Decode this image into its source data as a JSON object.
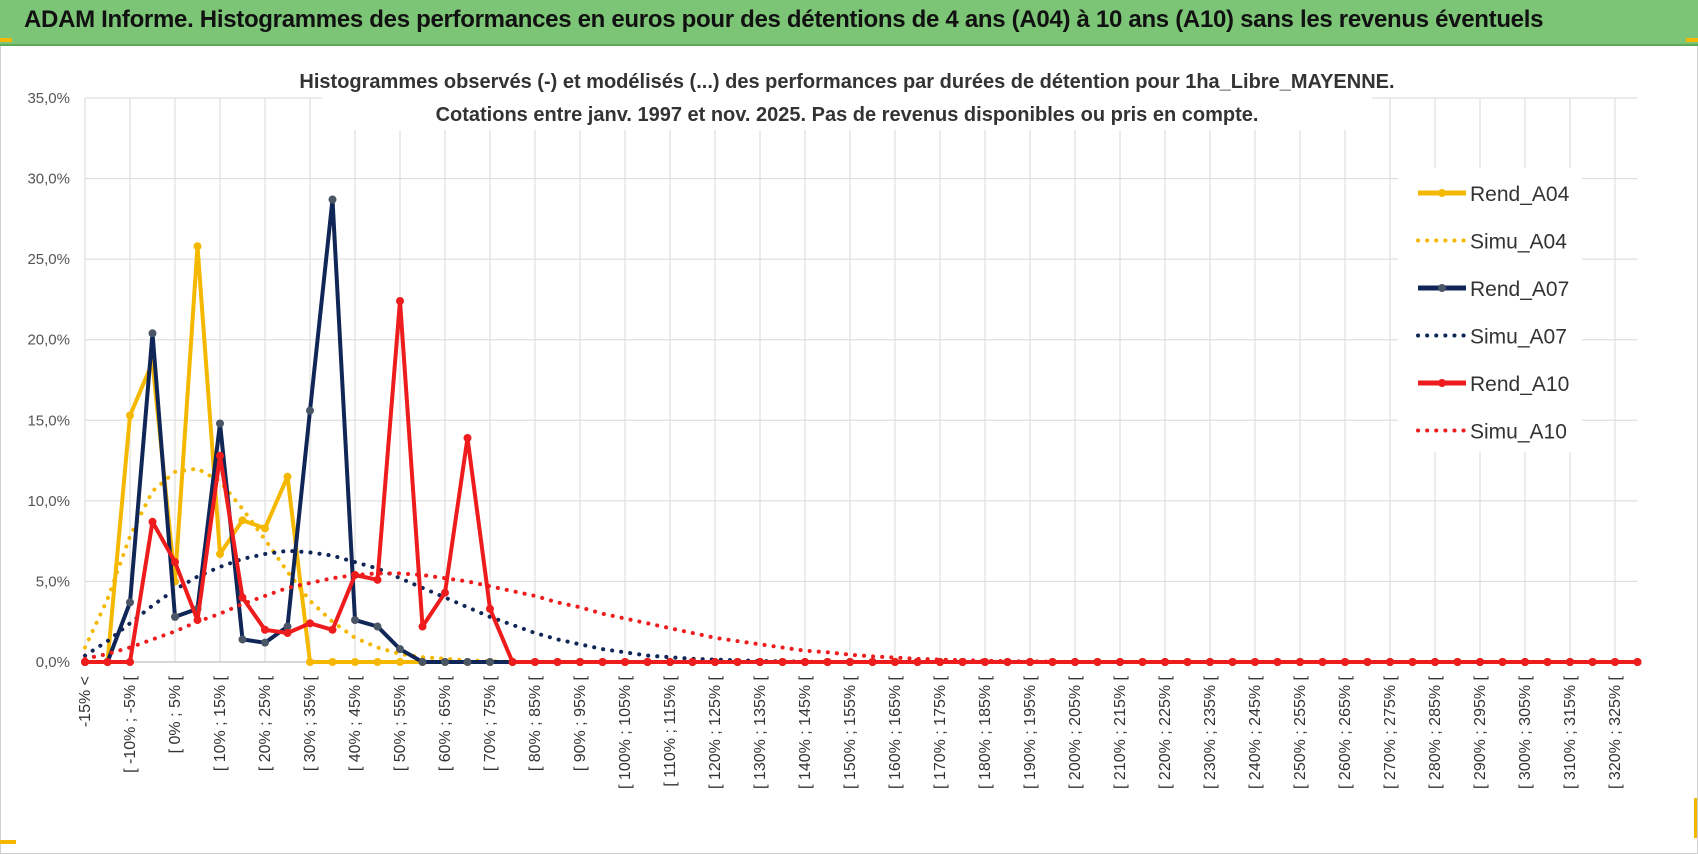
{
  "banner": {
    "title": "ADAM Informe. Histogrammes des performances en euros pour des détentions de 4 ans (A04) à 10 ans (A10) sans les revenus éventuels"
  },
  "chart_data": {
    "type": "line",
    "title_line1": "Histogrammes observés (-) et modélisés (...) des performances par durées de détention pour 1ha_Libre_MAYENNE.",
    "title_line2": "Cotations entre janv. 1997 et nov. 2025. Pas de revenus disponibles ou pris en compte.",
    "ylim": [
      0,
      35
    ],
    "yticks": [
      "0,0%",
      "5,0%",
      "10,0%",
      "15,0%",
      "20,0%",
      "25,0%",
      "30,0%",
      "35,0%"
    ],
    "x_tick_labels": [
      "-15% <",
      "[ -10% ; -5% [",
      "[ 0% ; 5% [",
      "[ 10% ; 15% [",
      "[ 20% ; 25% [",
      "[ 30% ; 35% [",
      "[ 40% ; 45% [",
      "[ 50% ; 55% [",
      "[ 60% ; 65% [",
      "[ 70% ; 75% [",
      "[ 80% ; 85% [",
      "[ 90% ; 95% [",
      "[ 100% ; 105% [",
      "[ 110% ; 115% [",
      "[ 120% ; 125% [",
      "[ 130% ; 135% [",
      "[ 140% ; 145% [",
      "[ 150% ; 155% [",
      "[ 160% ; 165% [",
      "[ 170% ; 175% [",
      "[ 180% ; 185% [",
      "[ 190% ; 195% [",
      "[ 200% ; 205% [",
      "[ 210% ; 215% [",
      "[ 220% ; 225% [",
      "[ 230% ; 235% [",
      "[ 240% ; 245% [",
      "[ 250% ; 255% [",
      "[ 260% ; 265% [",
      "[ 270% ; 275% [",
      "[ 280% ; 285% [",
      "[ 290% ; 295% [",
      "[ 300% ; 305% [",
      "[ 310% ; 315% [",
      "[ 320% ; 325% ["
    ],
    "n_bins": 70,
    "series": [
      {
        "name": "Rend_A04",
        "style": "solid",
        "color": "#f5b800",
        "values": [
          0,
          0,
          15.3,
          18.6,
          5.0,
          25.8,
          6.7,
          8.8,
          8.3,
          11.5,
          0,
          0,
          0,
          0,
          0,
          0,
          0,
          0,
          0,
          0,
          0,
          0,
          0,
          0,
          0,
          0,
          0,
          0,
          0,
          0,
          0,
          0,
          0,
          0,
          0,
          0,
          0,
          0,
          0,
          0,
          0,
          0,
          0,
          0,
          0,
          0,
          0,
          0,
          0,
          0,
          0,
          0,
          0,
          0,
          0,
          0,
          0,
          0,
          0,
          0,
          0,
          0,
          0,
          0,
          0,
          0,
          0,
          0,
          0,
          0
        ]
      },
      {
        "name": "Simu_A04",
        "style": "dotted",
        "color": "#f5b800",
        "values": [
          0.9,
          3.9,
          7.8,
          10.6,
          11.8,
          12.0,
          11.2,
          9.5,
          7.6,
          5.6,
          3.8,
          2.5,
          1.5,
          0.9,
          0.5,
          0.3,
          0.2,
          0.1,
          0.05,
          0,
          0,
          0,
          0,
          0,
          0,
          0,
          0,
          0,
          0,
          0,
          0,
          0,
          0,
          0,
          0,
          0,
          0,
          0,
          0,
          0,
          0,
          0,
          0,
          0,
          0,
          0,
          0,
          0,
          0,
          0,
          0,
          0,
          0,
          0,
          0,
          0,
          0,
          0,
          0,
          0,
          0,
          0,
          0,
          0,
          0,
          0,
          0,
          0,
          0,
          0
        ]
      },
      {
        "name": "Rend_A07",
        "style": "solid",
        "color": "#0f2657",
        "values": [
          0,
          0,
          3.7,
          20.4,
          2.8,
          3.3,
          14.8,
          1.4,
          1.2,
          2.2,
          15.6,
          28.7,
          2.6,
          2.2,
          0.8,
          0,
          0,
          0,
          0,
          0,
          0,
          0,
          0,
          0,
          0,
          0,
          0,
          0,
          0,
          0,
          0,
          0,
          0,
          0,
          0,
          0,
          0,
          0,
          0,
          0,
          0,
          0,
          0,
          0,
          0,
          0,
          0,
          0,
          0,
          0,
          0,
          0,
          0,
          0,
          0,
          0,
          0,
          0,
          0,
          0,
          0,
          0,
          0,
          0,
          0,
          0,
          0,
          0,
          0,
          0
        ]
      },
      {
        "name": "Simu_A07",
        "style": "dotted",
        "color": "#0f2657",
        "values": [
          0.4,
          1.3,
          2.4,
          3.5,
          4.5,
          5.3,
          5.9,
          6.4,
          6.7,
          6.9,
          6.8,
          6.6,
          6.2,
          5.8,
          5.2,
          4.6,
          4.0,
          3.4,
          2.8,
          2.3,
          1.8,
          1.4,
          1.1,
          0.8,
          0.6,
          0.4,
          0.3,
          0.2,
          0.15,
          0.1,
          0.06,
          0.04,
          0.02,
          0,
          0,
          0,
          0,
          0,
          0,
          0,
          0,
          0,
          0,
          0,
          0,
          0,
          0,
          0,
          0,
          0,
          0,
          0,
          0,
          0,
          0,
          0,
          0,
          0,
          0,
          0,
          0,
          0,
          0,
          0,
          0,
          0,
          0,
          0,
          0,
          0
        ]
      },
      {
        "name": "Rend_A10",
        "style": "solid",
        "color": "#ee1c1c",
        "values": [
          0,
          0,
          0,
          8.7,
          6.2,
          2.6,
          12.8,
          4.0,
          2.0,
          1.8,
          2.4,
          2.0,
          5.4,
          5.1,
          22.4,
          2.2,
          4.3,
          13.9,
          3.3,
          0,
          0,
          0,
          0,
          0,
          0,
          0,
          0,
          0,
          0,
          0,
          0,
          0,
          0,
          0,
          0,
          0,
          0,
          0,
          0,
          0,
          0,
          0,
          0,
          0,
          0,
          0,
          0,
          0,
          0,
          0,
          0,
          0,
          0,
          0,
          0,
          0,
          0,
          0,
          0,
          0,
          0,
          0,
          0,
          0,
          0,
          0,
          0,
          0,
          0,
          0
        ]
      },
      {
        "name": "Simu_A10",
        "style": "dotted",
        "color": "#ee1c1c",
        "values": [
          0.2,
          0.5,
          0.9,
          1.4,
          1.9,
          2.5,
          3.0,
          3.6,
          4.1,
          4.6,
          4.9,
          5.2,
          5.4,
          5.5,
          5.5,
          5.4,
          5.2,
          5.0,
          4.7,
          4.4,
          4.1,
          3.7,
          3.4,
          3.0,
          2.7,
          2.4,
          2.1,
          1.8,
          1.5,
          1.3,
          1.1,
          0.9,
          0.7,
          0.6,
          0.45,
          0.35,
          0.27,
          0.2,
          0.15,
          0.11,
          0.08,
          0.05,
          0.03,
          0.02,
          0,
          0,
          0,
          0,
          0,
          0,
          0,
          0,
          0,
          0,
          0,
          0,
          0,
          0,
          0,
          0,
          0,
          0,
          0,
          0,
          0,
          0,
          0,
          0,
          0,
          0
        ]
      }
    ]
  }
}
